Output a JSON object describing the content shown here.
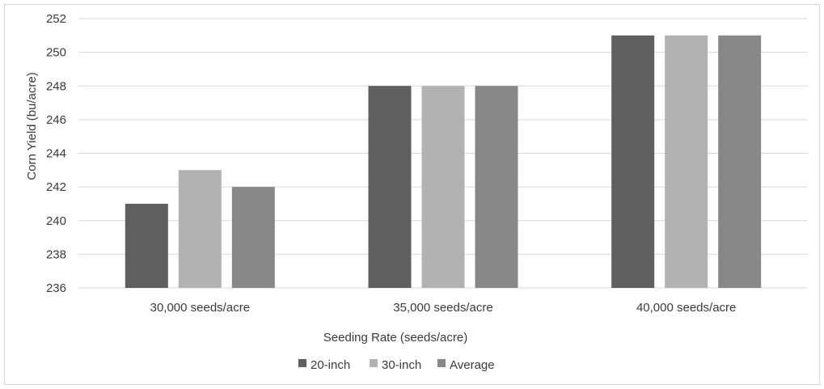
{
  "chart_data": {
    "type": "bar",
    "categories": [
      "30,000 seeds/acre",
      "35,000 seeds/acre",
      "40,000 seeds/acre"
    ],
    "series": [
      {
        "name": "20-inch",
        "values": [
          241,
          248,
          251
        ],
        "color": "#5f5f5f"
      },
      {
        "name": "30-inch",
        "values": [
          243,
          248,
          251
        ],
        "color": "#b2b2b2"
      },
      {
        "name": "Average",
        "values": [
          242,
          248,
          251
        ],
        "color": "#888888"
      }
    ],
    "xlabel": "Seeding Rate (seeds/acre)",
    "ylabel": "Corn Yield (bu/acre)",
    "ylim": [
      236,
      252
    ],
    "yticks": [
      236,
      238,
      240,
      242,
      244,
      246,
      248,
      250,
      252
    ],
    "grid": true,
    "legend_position": "bottom"
  }
}
